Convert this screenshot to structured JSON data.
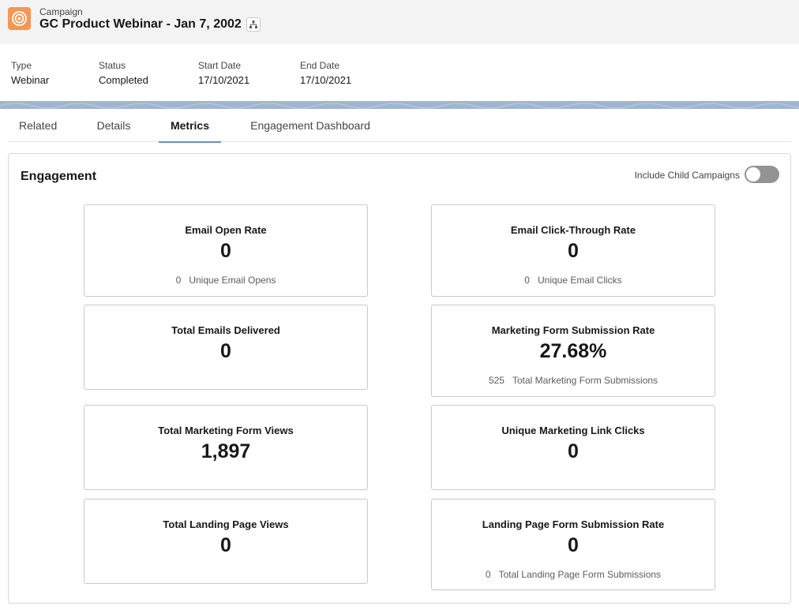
{
  "header": {
    "object_label": "Campaign",
    "title": "GC Product Webinar - Jan 7, 2002",
    "icon": "campaign-target-icon",
    "accent_color": "#f49756"
  },
  "highlights": [
    {
      "label": "Type",
      "value": "Webinar"
    },
    {
      "label": "Status",
      "value": "Completed"
    },
    {
      "label": "Start Date",
      "value": "17/10/2021"
    },
    {
      "label": "End Date",
      "value": "17/10/2021"
    }
  ],
  "tabs": [
    {
      "label": "Related",
      "active": false
    },
    {
      "label": "Details",
      "active": false
    },
    {
      "label": "Metrics",
      "active": true
    },
    {
      "label": "Engagement Dashboard",
      "active": false
    }
  ],
  "engagement": {
    "title": "Engagement",
    "toggle_label": "Include Child Campaigns",
    "toggle_on": false,
    "metrics": [
      {
        "title": "Email Open Rate",
        "value": "0",
        "sub_count": "0",
        "sub_label": "Unique Email Opens"
      },
      {
        "title": "Email Click-Through Rate",
        "value": "0",
        "sub_count": "0",
        "sub_label": "Unique Email Clicks"
      },
      {
        "title": "Total Emails Delivered",
        "value": "0"
      },
      {
        "title": "Marketing Form Submission Rate",
        "value": "27.68%",
        "sub_count": "525",
        "sub_label": "Total Marketing Form Submissions"
      },
      {
        "title": "Total Marketing Form Views",
        "value": "1,897"
      },
      {
        "title": "Unique Marketing Link Clicks",
        "value": "0"
      },
      {
        "title": "Total Landing Page Views",
        "value": "0"
      },
      {
        "title": "Landing Page Form Submission Rate",
        "value": "0",
        "sub_count": "0",
        "sub_label": "Total Landing Page Form Submissions"
      }
    ]
  }
}
